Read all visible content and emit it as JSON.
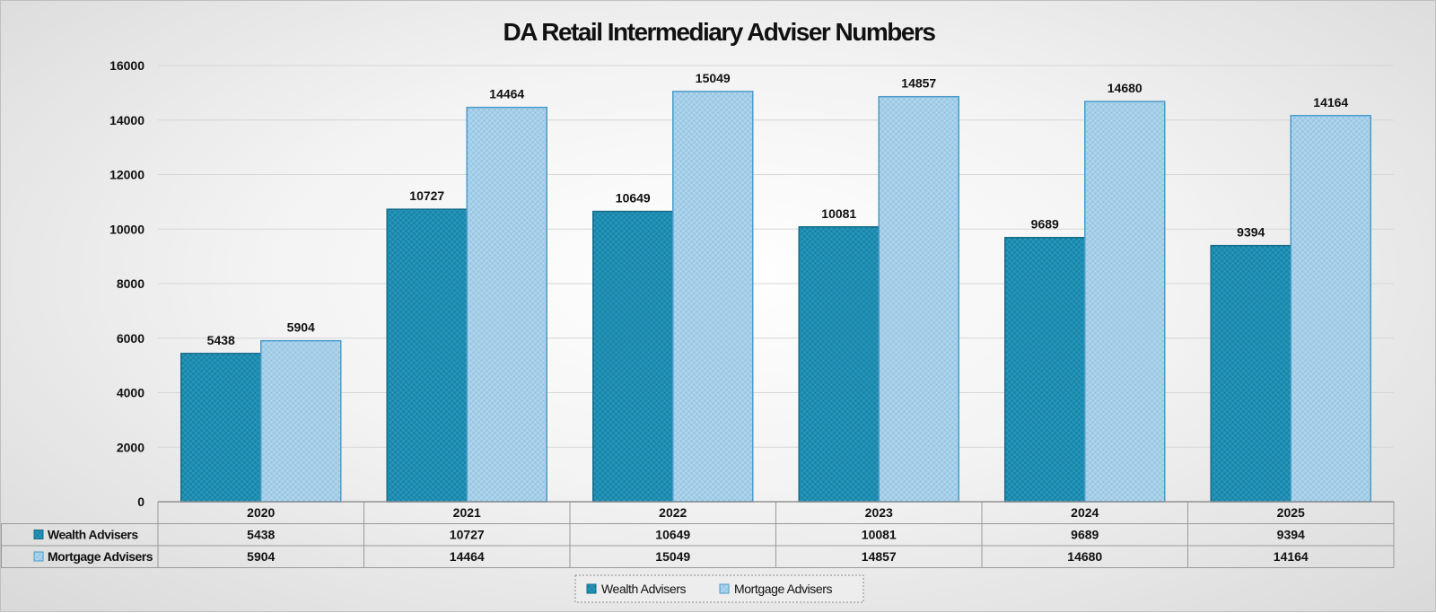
{
  "chart_data": {
    "type": "bar",
    "title": "DA Retail Intermediary Adviser Numbers",
    "xlabel": "",
    "ylabel": "",
    "categories": [
      "2020",
      "2021",
      "2022",
      "2023",
      "2024",
      "2025"
    ],
    "series": [
      {
        "name": "Wealth Advisers",
        "values": [
          5438,
          10727,
          10649,
          10081,
          9689,
          9394
        ],
        "color": "#1e8fb4"
      },
      {
        "name": "Mortgage Advisers",
        "values": [
          5904,
          14464,
          15049,
          14857,
          14680,
          14164
        ],
        "color": "#a6cfe9"
      }
    ],
    "ylim": [
      0,
      16000
    ],
    "yticks": [
      0,
      2000,
      4000,
      6000,
      8000,
      10000,
      12000,
      14000,
      16000
    ],
    "grid": true,
    "data_labels": true,
    "data_table": true,
    "legend": "bottom"
  },
  "colors": {
    "wealth": "#1e8fb4",
    "mortgage": "#a6cfe9",
    "wealth_border": "#156c8a",
    "mortgage_border": "#4a9ccb",
    "gridline": "#d6d6d6",
    "table_border": "#9a9a9a"
  }
}
